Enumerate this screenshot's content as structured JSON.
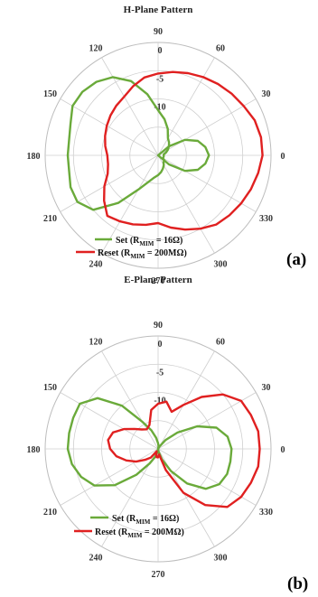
{
  "chart_data": [
    {
      "type": "polar-line",
      "title": "H-Plane Pattern",
      "panel_label": "(a)",
      "angle_unit": "degrees",
      "angle_ticks": [
        90,
        60,
        30,
        0,
        330,
        300,
        270,
        240,
        210,
        180,
        150,
        120
      ],
      "radial_ticks": [
        -10,
        -5,
        0
      ],
      "rlim": [
        -20,
        0
      ],
      "grid": true,
      "legend_position": "bottom-center",
      "series": [
        {
          "name": "Set (R_MIM = 16Ω)",
          "legend_main": "Set (R",
          "legend_sub": "MIM",
          "legend_tail": " = 16Ω)",
          "color": "#6aaa3a",
          "angles": [
            0,
            10,
            20,
            30,
            40,
            50,
            60,
            70,
            80,
            90,
            100,
            110,
            120,
            130,
            140,
            150,
            160,
            170,
            180,
            190,
            200,
            210,
            220,
            230,
            240,
            250,
            260,
            270,
            280,
            290,
            300,
            310,
            320,
            330,
            340,
            350,
            360
          ],
          "values": [
            -19,
            -19,
            -18.5,
            -18,
            -17.5,
            -17,
            -16.5,
            -15,
            -13.5,
            -12,
            -9,
            -6,
            -4,
            -3,
            -2.5,
            -2.5,
            -3.5,
            -4,
            -4,
            -4,
            -3.5,
            -3.5,
            -5,
            -9,
            -13,
            -15,
            -16,
            -16.5,
            -17,
            -17.5,
            -18,
            -18.5,
            -18.5,
            -19,
            -19,
            -19,
            -19
          ]
        },
        {
          "name": "Reset (R_MIM = 200MΩ)",
          "legend_main": "Reset (R",
          "legend_sub": "MIM",
          "legend_tail": " = 200MΩ)",
          "color": "#e02020",
          "angles": [
            0,
            10,
            20,
            30,
            40,
            50,
            60,
            70,
            80,
            90,
            100,
            110,
            120,
            130,
            140,
            150,
            160,
            170,
            180,
            190,
            200,
            210,
            220,
            230,
            240,
            250,
            260,
            270,
            280,
            290,
            300,
            310,
            320,
            330,
            340,
            350,
            360
          ],
          "values": [
            -1.5,
            -1.5,
            -1.8,
            -2.5,
            -3,
            -3.5,
            -4,
            -4.5,
            -5,
            -5.5,
            -6,
            -7,
            -8,
            -8.5,
            -9,
            -9.5,
            -10,
            -10.5,
            -11,
            -11,
            -10.5,
            -9,
            -7.5,
            -6,
            -6.5,
            -7,
            -7.5,
            -8,
            -7,
            -6,
            -5,
            -4,
            -3.5,
            -3,
            -2.5,
            -2,
            -1.5
          ]
        },
        {
          "name": "Set lobe (0°)",
          "legend": false,
          "color": "#6aaa3a",
          "angles": [
            -45,
            -40,
            -30,
            -20,
            -10,
            0,
            10,
            20,
            30,
            40,
            45
          ],
          "values": [
            -20,
            -17.5,
            -14.5,
            -12.5,
            -11.5,
            -11,
            -11.5,
            -12.5,
            -14.5,
            -17.5,
            -20
          ]
        }
      ]
    },
    {
      "type": "polar-line",
      "title": "E-Plane Pattern",
      "panel_label": "(b)",
      "angle_unit": "degrees",
      "angle_ticks": [
        90,
        60,
        30,
        0,
        330,
        300,
        270,
        240,
        210,
        180,
        150,
        120
      ],
      "radial_ticks": [
        -10,
        -5,
        0
      ],
      "rlim": [
        -20,
        0
      ],
      "grid": true,
      "legend_position": "bottom-center",
      "series": [
        {
          "name": "Set (R_MIM = 16Ω)",
          "legend_main": "Set (R",
          "legend_sub": "MIM",
          "legend_tail": " = 16Ω)",
          "color": "#6aaa3a",
          "angles": [
            0,
            10,
            20,
            30,
            40,
            50,
            60,
            70,
            80,
            90,
            100,
            110,
            120,
            130,
            140,
            150,
            160,
            170,
            180,
            190,
            200,
            210,
            220,
            230,
            240,
            250,
            260,
            270,
            280,
            290,
            300,
            310,
            320,
            330,
            340,
            350,
            360
          ],
          "values": [
            -7,
            -7.5,
            -9,
            -12,
            -15.5,
            -18,
            -19.5,
            -20,
            -19.5,
            -19,
            -18,
            -16.5,
            -14.5,
            -10,
            -6,
            -4,
            -4,
            -4,
            -4,
            -4.5,
            -5.5,
            -7,
            -10,
            -14,
            -17,
            -18.5,
            -19.5,
            -20,
            -19.5,
            -18,
            -15.5,
            -12,
            -9,
            -7.5,
            -7,
            -7,
            -7
          ]
        },
        {
          "name": "Reset (R_MIM = 200MΩ)",
          "legend_main": "Reset (R",
          "legend_sub": "MIM",
          "legend_tail": " = 200MΩ)",
          "color": "#e02020",
          "angles": [
            0,
            10,
            20,
            30,
            40,
            50,
            60,
            70,
            80,
            90,
            100,
            110,
            120,
            130,
            140,
            150,
            160,
            170,
            180,
            190,
            200,
            210,
            220,
            230,
            240,
            250,
            260,
            270,
            280,
            290,
            300,
            310,
            320,
            330,
            340,
            350,
            360
          ],
          "values": [
            -2,
            -2,
            -2.5,
            -3,
            -5,
            -8,
            -11,
            -13,
            -11.5,
            -12,
            -13,
            -15.5,
            -16,
            -15.5,
            -14.5,
            -13,
            -11.5,
            -11,
            -11.5,
            -12.5,
            -14,
            -15.5,
            -17,
            -18,
            -19.5,
            -19,
            -18.5,
            -18.5,
            -19,
            -16,
            -11,
            -7,
            -4,
            -3,
            -2.5,
            -2,
            -2
          ]
        }
      ]
    }
  ]
}
